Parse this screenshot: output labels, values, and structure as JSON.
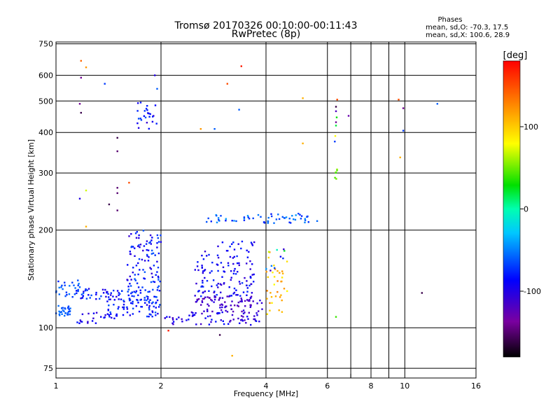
{
  "chart_data": {
    "type": "scatter",
    "title": "Tromsø 20170326 00:10:00-00:11:43",
    "subtitle": "RwPretec (8p)",
    "xlabel": "Frequency [MHz]",
    "ylabel": "Stationary phase Virtual Height [km]",
    "x_scale": "log",
    "y_scale": "log",
    "xlim": [
      1,
      16
    ],
    "ylim": [
      70,
      760
    ],
    "x_ticks": [
      1,
      2,
      4,
      6,
      8,
      10,
      16
    ],
    "x_tick_labels": [
      "1",
      "2",
      "4",
      "6",
      "8",
      "10",
      "16"
    ],
    "x_minor_ticks": [
      7,
      9
    ],
    "y_ticks": [
      75,
      100,
      200,
      300,
      400,
      500,
      600,
      750
    ],
    "y_tick_labels": [
      "75",
      "100",
      "200",
      "300",
      "400",
      "500",
      "600",
      "750"
    ],
    "grid": true,
    "stats": {
      "heading": "Phases",
      "line_o": "mean, sd,O: -70.3, 17.5",
      "line_x": "mean, sd,X: 100.6, 28.9"
    },
    "colorbar": {
      "label": "[deg]",
      "range": [
        -180,
        180
      ],
      "ticks": [
        100,
        0,
        -100
      ],
      "tick_labels": [
        "100",
        "0",
        "-100"
      ]
    },
    "clusters": [
      {
        "f": [
          1.0,
          1.1
        ],
        "h": [
          108,
          118
        ],
        "phase": [
          -70,
          -50
        ],
        "n": 30
      },
      {
        "f": [
          1.0,
          1.2
        ],
        "h": [
          125,
          140
        ],
        "phase": [
          -80,
          -50
        ],
        "n": 25
      },
      {
        "f": [
          1.1,
          1.55
        ],
        "h": [
          122,
          132
        ],
        "phase": [
          -110,
          -60
        ],
        "n": 45
      },
      {
        "f": [
          1.15,
          1.5
        ],
        "h": [
          103,
          112
        ],
        "phase": [
          -110,
          -80
        ],
        "n": 25
      },
      {
        "f": [
          1.4,
          2.0
        ],
        "h": [
          108,
          125
        ],
        "phase": [
          -100,
          -60
        ],
        "n": 60
      },
      {
        "f": [
          1.6,
          2.0
        ],
        "h": [
          140,
          200
        ],
        "phase": [
          -110,
          -60
        ],
        "n": 80
      },
      {
        "f": [
          1.6,
          2.0
        ],
        "h": [
          115,
          140
        ],
        "phase": [
          -90,
          -60
        ],
        "n": 50
      },
      {
        "f": [
          1.7,
          1.95
        ],
        "h": [
          410,
          500
        ],
        "phase": [
          -110,
          -60
        ],
        "n": 25
      },
      {
        "f": [
          2.05,
          3.9
        ],
        "h": [
          102,
          112
        ],
        "phase": [
          -120,
          -80
        ],
        "n": 70
      },
      {
        "f": [
          2.5,
          3.9
        ],
        "h": [
          112,
          125
        ],
        "phase": [
          -130,
          -100
        ],
        "n": 80
      },
      {
        "f": [
          2.5,
          3.7
        ],
        "h": [
          125,
          160
        ],
        "phase": [
          -110,
          -70
        ],
        "n": 100
      },
      {
        "f": [
          2.6,
          3.8
        ],
        "h": [
          160,
          185
        ],
        "phase": [
          -110,
          -70
        ],
        "n": 30
      },
      {
        "f": [
          2.7,
          5.7
        ],
        "h": [
          210,
          225
        ],
        "phase": [
          -80,
          -40
        ],
        "n": 60
      },
      {
        "f": [
          4.0,
          4.6
        ],
        "h": [
          110,
          150
        ],
        "phase": [
          80,
          130
        ],
        "n": 30
      },
      {
        "f": [
          4.0,
          4.7
        ],
        "h": [
          150,
          175
        ],
        "phase": [
          -130,
          140
        ],
        "n": 15
      },
      {
        "f": [
          6.3,
          6.4
        ],
        "h": [
          285,
          310
        ],
        "phase": [
          30,
          60
        ],
        "n": 6
      }
    ],
    "sparse_points": [
      {
        "f": 1.18,
        "h": 665,
        "phase": 140
      },
      {
        "f": 1.22,
        "h": 635,
        "phase": 120
      },
      {
        "f": 1.18,
        "h": 590,
        "phase": -140
      },
      {
        "f": 1.38,
        "h": 565,
        "phase": -70
      },
      {
        "f": 1.17,
        "h": 490,
        "phase": -140
      },
      {
        "f": 1.18,
        "h": 460,
        "phase": -160
      },
      {
        "f": 1.92,
        "h": 600,
        "phase": -100
      },
      {
        "f": 1.95,
        "h": 545,
        "phase": -60
      },
      {
        "f": 1.5,
        "h": 385,
        "phase": -160
      },
      {
        "f": 1.5,
        "h": 350,
        "phase": -150
      },
      {
        "f": 1.5,
        "h": 270,
        "phase": -150
      },
      {
        "f": 1.5,
        "h": 260,
        "phase": -150
      },
      {
        "f": 1.22,
        "h": 265,
        "phase": 70
      },
      {
        "f": 1.62,
        "h": 280,
        "phase": 150
      },
      {
        "f": 1.17,
        "h": 250,
        "phase": -100
      },
      {
        "f": 1.42,
        "h": 240,
        "phase": -160
      },
      {
        "f": 1.5,
        "h": 230,
        "phase": -150
      },
      {
        "f": 1.22,
        "h": 205,
        "phase": 110
      },
      {
        "f": 2.6,
        "h": 410,
        "phase": 120
      },
      {
        "f": 2.85,
        "h": 410,
        "phase": -60
      },
      {
        "f": 3.1,
        "h": 565,
        "phase": 150
      },
      {
        "f": 3.4,
        "h": 640,
        "phase": 170
      },
      {
        "f": 3.35,
        "h": 470,
        "phase": -60
      },
      {
        "f": 5.1,
        "h": 510,
        "phase": 110
      },
      {
        "f": 5.1,
        "h": 370,
        "phase": 110
      },
      {
        "f": 6.4,
        "h": 505,
        "phase": 150
      },
      {
        "f": 6.35,
        "h": 480,
        "phase": -160
      },
      {
        "f": 6.35,
        "h": 465,
        "phase": -120
      },
      {
        "f": 6.38,
        "h": 445,
        "phase": 30
      },
      {
        "f": 6.35,
        "h": 430,
        "phase": -140
      },
      {
        "f": 6.32,
        "h": 390,
        "phase": 80
      },
      {
        "f": 6.3,
        "h": 375,
        "phase": -70
      },
      {
        "f": 6.35,
        "h": 420,
        "phase": 20
      },
      {
        "f": 6.9,
        "h": 450,
        "phase": -130
      },
      {
        "f": 9.6,
        "h": 505,
        "phase": 150
      },
      {
        "f": 9.9,
        "h": 475,
        "phase": -140
      },
      {
        "f": 9.9,
        "h": 405,
        "phase": -70
      },
      {
        "f": 9.7,
        "h": 335,
        "phase": 110
      },
      {
        "f": 12.4,
        "h": 490,
        "phase": -60
      },
      {
        "f": 11.2,
        "h": 128,
        "phase": -160
      },
      {
        "f": 6.35,
        "h": 108,
        "phase": 40
      },
      {
        "f": 2.1,
        "h": 98,
        "phase": 170
      },
      {
        "f": 2.95,
        "h": 95,
        "phase": -160
      },
      {
        "f": 3.2,
        "h": 82,
        "phase": 110
      }
    ]
  }
}
